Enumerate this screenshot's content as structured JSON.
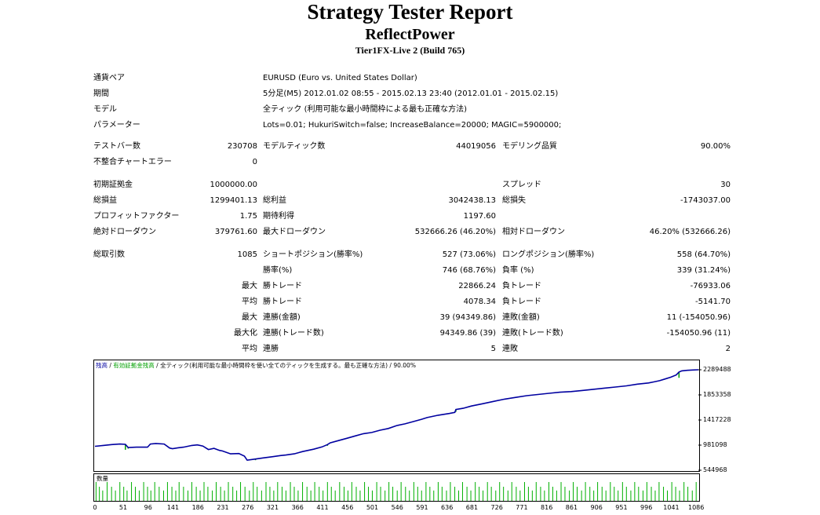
{
  "report": {
    "title": "Strategy Tester Report",
    "expert": "ReflectPower",
    "server": "Tier1FX-Live 2 (Build 765)"
  },
  "settings": [
    {
      "label": "通貨ペア",
      "value": "EURUSD (Euro vs. United States Dollar)"
    },
    {
      "label": "期間",
      "value": "5分足(M5) 2012.01.02 08:55 - 2015.02.13 23:40 (2012.01.01 - 2015.02.15)"
    },
    {
      "label": "モデル",
      "value": "全ティック (利用可能な最小時間枠による最も正確な方法)"
    },
    {
      "label": "パラメーター",
      "value": "Lots=0.01; HukuriSwitch=false; IncreaseBalance=20000; MAGIC=5900000;"
    }
  ],
  "stats": {
    "bars_label": "テストバー数",
    "bars": "230708",
    "ticks_label": "モデルティック数",
    "ticks": "44019056",
    "quality_label": "モデリング品質",
    "quality": "90.00%",
    "mismatch_label": "不整合チャートエラー",
    "mismatch": "0",
    "deposit_label": "初期証拠金",
    "deposit": "1000000.00",
    "spread_label": "スプレッド",
    "spread": "30",
    "net_label": "総損益",
    "net": "1299401.13",
    "gross_profit_label": "総利益",
    "gross_profit": "3042438.13",
    "gross_loss_label": "総損失",
    "gross_loss": "-1743037.00",
    "pf_label": "プロフィットファクター",
    "pf": "1.75",
    "expected_label": "期待利得",
    "expected": "1197.60",
    "abs_dd_label": "絶対ドローダウン",
    "abs_dd": "379761.60",
    "max_dd_label": "最大ドローダウン",
    "max_dd": "532666.26 (46.20%)",
    "rel_dd_label": "相対ドローダウン",
    "rel_dd": "46.20% (532666.26)",
    "trades_label": "総取引数",
    "trades": "1085",
    "short_label": "ショートポジション(勝率%)",
    "short": "527 (73.06%)",
    "long_label": "ロングポジション(勝率%)",
    "long": "558 (64.70%)",
    "win_pct_label": "勝率(%)",
    "win_pct": "746 (68.76%)",
    "loss_pct_label": "負率 (%)",
    "loss_pct": "339 (31.24%)",
    "max_label": "最大",
    "avg_label": "平均",
    "maxed_label": "最大化",
    "largest_win_label": "勝トレード",
    "largest_win": "22866.24",
    "largest_loss_label": "負トレード",
    "largest_loss": "-76933.06",
    "avg_win_label": "勝トレード",
    "avg_win": "4078.34",
    "avg_loss_label": "負トレード",
    "avg_loss": "-5141.70",
    "consec_wins_label": "連勝(金額)",
    "consec_wins": "39 (94349.86)",
    "consec_losses_label": "連敗(金額)",
    "consec_losses": "11 (-154050.96)",
    "max_consec_profit_label": "連勝(トレード数)",
    "max_consec_profit": "94349.86 (39)",
    "max_consec_loss_label": "連敗(トレード数)",
    "max_consec_loss": "-154050.96 (11)",
    "avg_consec_wins_label": "連勝",
    "avg_consec_wins": "5",
    "avg_consec_losses_label": "連敗",
    "avg_consec_losses": "2"
  },
  "chart_labels": {
    "legend_balance": "残高",
    "legend_sep1": " / ",
    "legend_equity": "有効証拠金残高",
    "legend_sep2": " / ",
    "legend_model": "全ティック(利用可能な最小時間枠を使い全てのティックを生成する。最も正確な方法)",
    "legend_sep3": " / ",
    "legend_quality": "90.00%",
    "volume_label": "数量"
  },
  "colors": {
    "balance": "#0000a0",
    "equity": "#00a000",
    "volume": "#00b000"
  },
  "chart_data": {
    "type": "line",
    "y_ticks": [
      "2289488",
      "1853358",
      "1417228",
      "981098",
      "544968"
    ],
    "ylim": [
      544968,
      2289488
    ],
    "x_ticks": [
      "0",
      "51",
      "96",
      "141",
      "186",
      "231",
      "276",
      "321",
      "366",
      "411",
      "456",
      "501",
      "546",
      "591",
      "636",
      "681",
      "726",
      "771",
      "816",
      "861",
      "906",
      "951",
      "996",
      "1041",
      "1086"
    ],
    "xlim": [
      0,
      1090
    ],
    "series": [
      {
        "name": "残高",
        "x": [
          0,
          15,
          30,
          45,
          55,
          60,
          75,
          95,
          100,
          110,
          125,
          135,
          140,
          150,
          160,
          175,
          185,
          195,
          205,
          215,
          225,
          230,
          245,
          260,
          270,
          275,
          290,
          305,
          320,
          335,
          345,
          360,
          375,
          385,
          395,
          410,
          420,
          425,
          440,
          455,
          470,
          485,
          500,
          515,
          530,
          545,
          560,
          575,
          590,
          600,
          620,
          640,
          650,
          652,
          665,
          680,
          700,
          720,
          740,
          760,
          780,
          800,
          820,
          840,
          860,
          880,
          900,
          920,
          940,
          960,
          980,
          1000,
          1010,
          1020,
          1030,
          1040,
          1050,
          1055,
          1060,
          1070,
          1080,
          1090
        ],
        "values": [
          960000,
          975000,
          990000,
          1000000,
          995000,
          940000,
          945000,
          945000,
          1000000,
          1010000,
          1000000,
          930000,
          920000,
          935000,
          945000,
          975000,
          985000,
          965000,
          905000,
          925000,
          890000,
          880000,
          830000,
          835000,
          790000,
          720000,
          740000,
          760000,
          780000,
          800000,
          810000,
          830000,
          870000,
          890000,
          910000,
          950000,
          990000,
          1020000,
          1060000,
          1100000,
          1140000,
          1180000,
          1200000,
          1240000,
          1270000,
          1320000,
          1350000,
          1390000,
          1430000,
          1460000,
          1500000,
          1530000,
          1550000,
          1600000,
          1620000,
          1660000,
          1700000,
          1740000,
          1780000,
          1810000,
          1840000,
          1860000,
          1880000,
          1900000,
          1910000,
          1930000,
          1950000,
          1970000,
          1990000,
          2010000,
          2040000,
          2060000,
          2080000,
          2100000,
          2130000,
          2160000,
          2200000,
          2250000,
          2270000,
          2280000,
          2285000,
          2289488
        ]
      },
      {
        "name": "有効証拠金残高",
        "x": [
          55,
          60,
          290,
          420,
          652,
          1055
        ],
        "values": [
          900000,
          920000,
          720000,
          970000,
          1560000,
          2150000
        ]
      }
    ],
    "volume": {
      "name": "数量",
      "spike_positions": [
        2,
        8,
        14,
        22,
        30,
        37,
        45,
        52,
        58,
        66,
        73,
        80,
        88,
        95,
        101,
        108,
        116,
        124,
        131,
        139,
        146,
        152,
        160,
        168,
        175,
        183,
        190,
        197,
        204,
        212,
        219,
        227,
        234,
        241,
        249,
        256,
        263,
        271,
        279,
        286,
        293,
        301,
        309,
        316,
        323,
        330,
        338,
        345,
        353,
        360,
        367,
        375,
        383,
        390,
        397,
        405,
        412,
        420,
        427,
        434,
        442,
        450,
        457,
        464,
        472,
        479,
        487,
        494,
        501,
        509,
        516,
        524,
        531,
        538,
        546,
        553,
        561,
        568,
        576,
        583,
        590,
        598,
        605,
        612,
        620,
        627,
        635,
        642,
        650,
        657,
        664,
        672,
        679,
        687,
        694,
        701,
        709,
        716,
        724,
        731,
        738,
        746,
        753,
        761,
        768,
        776,
        783,
        790,
        797,
        805,
        812,
        820,
        827,
        834,
        842,
        849,
        857,
        864,
        871,
        879,
        886,
        894,
        901,
        908,
        916,
        923,
        931,
        938,
        945,
        953,
        960,
        968,
        975,
        982,
        990,
        997,
        1005,
        1012,
        1019,
        1027,
        1034,
        1042,
        1049,
        1056,
        1064,
        1071,
        1079,
        1086
      ],
      "value": 1
    }
  }
}
